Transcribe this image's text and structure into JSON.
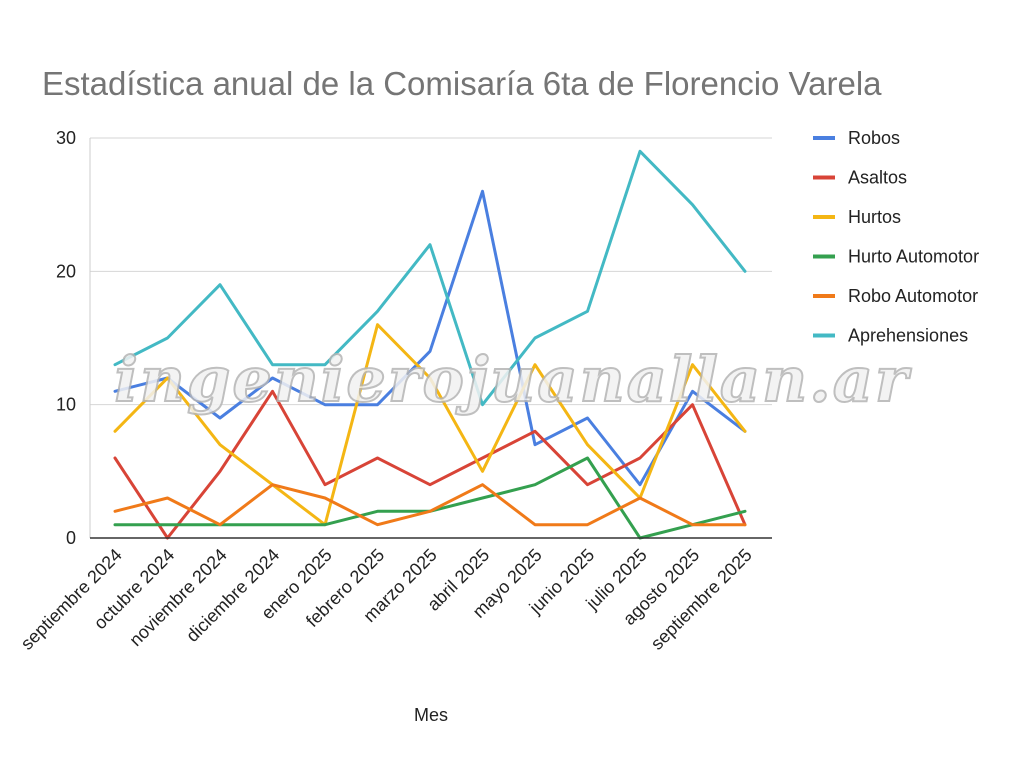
{
  "watermark": "ingenierojuanallan.ar",
  "chart_data": {
    "type": "line",
    "title": "Estadística anual de la Comisaría 6ta de Florencio Varela",
    "xlabel": "Mes",
    "ylabel": "",
    "ylim": [
      0,
      30
    ],
    "yticks": [
      0,
      10,
      20,
      30
    ],
    "grid": true,
    "legend_position": "right",
    "categories": [
      "septiembre 2024",
      "octubre 2024",
      "noviembre 2024",
      "diciembre 2024",
      "enero 2025",
      "febrero 2025",
      "marzo 2025",
      "abril 2025",
      "mayo 2025",
      "junio 2025",
      "julio 2025",
      "agosto 2025",
      "septiembre 2025"
    ],
    "series": [
      {
        "name": "Robos",
        "color": "#4a7fe0",
        "values": [
          11,
          12,
          9,
          12,
          10,
          10,
          14,
          26,
          7,
          9,
          4,
          11,
          8
        ]
      },
      {
        "name": "Asaltos",
        "color": "#d84437",
        "values": [
          6,
          0,
          5,
          11,
          4,
          6,
          4,
          6,
          8,
          4,
          6,
          10,
          1
        ]
      },
      {
        "name": "Hurtos",
        "color": "#f4b614",
        "values": [
          8,
          12,
          7,
          4,
          1,
          16,
          12,
          5,
          13,
          7,
          3,
          13,
          8
        ]
      },
      {
        "name": "Hurto Automotor",
        "color": "#34a04f",
        "values": [
          1,
          1,
          1,
          1,
          1,
          2,
          2,
          3,
          4,
          6,
          0,
          1,
          2
        ]
      },
      {
        "name": "Robo Automotor",
        "color": "#f07a19",
        "values": [
          2,
          3,
          1,
          4,
          3,
          1,
          2,
          4,
          1,
          1,
          3,
          1,
          1
        ]
      },
      {
        "name": "Aprehensiones",
        "color": "#43b9c4",
        "values": [
          13,
          15,
          19,
          13,
          13,
          17,
          22,
          10,
          15,
          17,
          29,
          25,
          20
        ]
      }
    ]
  }
}
